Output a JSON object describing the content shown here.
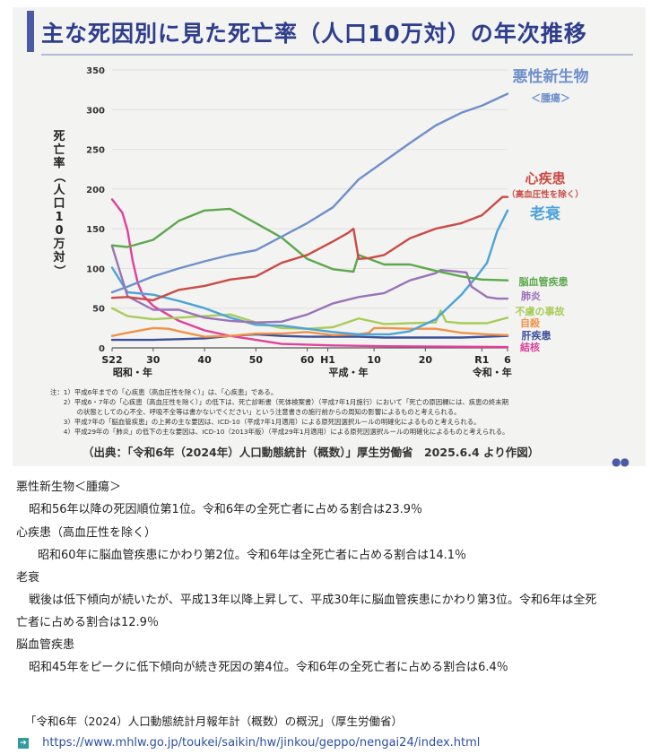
{
  "page": {
    "title": "主な死因別に見た死亡率（人口10万対）の年次推移",
    "notes": [
      "注：1）平成6年までの「心疾患（高血圧性を除く）」は、「心疾患」である。",
      "　　2）平成6・7年の「心疾患（高血圧性を除く）」の低下は、死亡診断書（死体検案書）（平成7年1月施行）において「死亡の原因欄には、疾患の終末期",
      "　　　　の状態としての心不全、呼吸不全等は書かないでください」という注意書きの施行前からの周知の影響によるものと考えられる。",
      "　　3）平成7年の「脳血管疾患」の上昇の主な要因は、ICD-10（平成7年1月適用）による原死因選択ルールの明確化によるものと考えられる。",
      "　　4）平成29年の「肺炎」の低下の主な要因は、ICD-10（2013年版）（平成29年1月適用）による原死因選択ルールの明確化によるものと考えられる。"
    ],
    "source": "（出典：「令和6年（2024年）人口動態統計（概数）」厚生労働省　2025.6.4 より作図）"
  },
  "colors": {
    "cancer": "#6f8fcb",
    "heart": "#c94c46",
    "senility": "#4da3d8",
    "cerebro": "#5da84e",
    "pneumonia": "#9a73b8",
    "accident": "#a8cc5a",
    "suicide": "#ef9348",
    "liver": "#3b4f9a",
    "tb": "#e1409b",
    "title": "#2e3e8c"
  },
  "chart_data": {
    "type": "line",
    "ylabel": "死亡率（人口10万対）",
    "ylim": [
      0,
      350
    ],
    "yticks": [
      0,
      50,
      100,
      150,
      200,
      250,
      300,
      350
    ],
    "xlim": [
      1947,
      2024
    ],
    "xticks": [
      {
        "year": 1947,
        "label": "S22"
      },
      {
        "year": 1955,
        "label": "30"
      },
      {
        "year": 1965,
        "label": "40"
      },
      {
        "year": 1975,
        "label": "50"
      },
      {
        "year": 1985,
        "label": "60"
      },
      {
        "year": 1989,
        "label": "H1"
      },
      {
        "year": 1998,
        "label": "10"
      },
      {
        "year": 2008,
        "label": "20"
      },
      {
        "year": 2019,
        "label": "R1"
      },
      {
        "year": 2024,
        "label": "6"
      }
    ],
    "era_labels": [
      {
        "year": 1951,
        "label": "昭和・年"
      },
      {
        "year": 1993,
        "label": "平成・年"
      },
      {
        "year": 2021,
        "label": "令和・年"
      }
    ],
    "series": [
      {
        "key": "cancer",
        "name": "悪性新生物",
        "sub": "＜腫瘍＞",
        "x": [
          1947,
          1950,
          1955,
          1960,
          1965,
          1970,
          1975,
          1980,
          1985,
          1990,
          1995,
          2000,
          2005,
          2010,
          2015,
          2019,
          2024
        ],
        "y": [
          70,
          77,
          90,
          100,
          109,
          117,
          123,
          140,
          157,
          177,
          212,
          235,
          258,
          280,
          296,
          305,
          320
        ]
      },
      {
        "key": "heart",
        "name": "心疾患",
        "sub": "（高血圧性を除く）",
        "x": [
          1947,
          1950,
          1955,
          1960,
          1965,
          1970,
          1975,
          1980,
          1985,
          1990,
          1993,
          1994,
          1995,
          1997,
          2000,
          2005,
          2010,
          2015,
          2019,
          2023,
          2024
        ],
        "y": [
          63,
          64,
          60,
          73,
          78,
          86,
          90,
          107,
          117,
          134,
          145,
          150,
          112,
          113,
          117,
          138,
          150,
          157,
          167,
          190,
          190
        ]
      },
      {
        "key": "senility",
        "name": "老衰",
        "x": [
          1947,
          1950,
          1955,
          1960,
          1965,
          1970,
          1975,
          1980,
          1985,
          1990,
          1995,
          2000,
          2001,
          2005,
          2010,
          2015,
          2018,
          2020,
          2022,
          2024
        ],
        "y": [
          101,
          70,
          67,
          59,
          50,
          38,
          29,
          28,
          24,
          20,
          17,
          17,
          17,
          21,
          36,
          67,
          90,
          107,
          147,
          173
        ]
      },
      {
        "key": "cerebro",
        "name": "脳血管疾患",
        "x": [
          1947,
          1950,
          1955,
          1960,
          1965,
          1970,
          1975,
          1980,
          1985,
          1990,
          1994,
          1995,
          2000,
          2005,
          2010,
          2015,
          2019,
          2024
        ],
        "y": [
          129,
          127,
          136,
          160,
          173,
          175,
          157,
          139,
          112,
          99,
          96,
          117,
          105,
          105,
          97,
          90,
          86,
          85
        ]
      },
      {
        "key": "pneumonia",
        "name": "肺炎",
        "x": [
          1947,
          1950,
          1955,
          1960,
          1965,
          1970,
          1975,
          1980,
          1985,
          1990,
          1995,
          2000,
          2005,
          2010,
          2011,
          2016,
          2017,
          2020,
          2022,
          2024
        ],
        "y": [
          128,
          65,
          48,
          48,
          38,
          34,
          32,
          33,
          42,
          56,
          64,
          69,
          85,
          94,
          98,
          95,
          77,
          64,
          62,
          62
        ]
      },
      {
        "key": "accident",
        "name": "不慮の事故",
        "x": [
          1947,
          1950,
          1955,
          1960,
          1965,
          1970,
          1975,
          1980,
          1985,
          1990,
          1995,
          2000,
          2005,
          2010,
          2011,
          2012,
          2015,
          2020,
          2024
        ],
        "y": [
          50,
          40,
          36,
          38,
          40,
          42,
          32,
          25,
          24,
          26,
          37,
          30,
          31,
          32,
          47,
          33,
          31,
          31,
          38
        ]
      },
      {
        "key": "suicide",
        "name": "自殺",
        "x": [
          1947,
          1950,
          1955,
          1958,
          1960,
          1965,
          1970,
          1975,
          1980,
          1985,
          1990,
          1995,
          1997,
          1998,
          2000,
          2005,
          2010,
          2015,
          2020,
          2024
        ],
        "y": [
          15,
          19,
          25,
          24,
          21,
          14,
          15,
          18,
          18,
          20,
          16,
          17,
          19,
          25,
          25,
          24,
          24,
          19,
          17,
          16
        ]
      },
      {
        "key": "liver",
        "name": "肝疾患",
        "x": [
          1947,
          1955,
          1960,
          1965,
          1970,
          1975,
          1980,
          1985,
          1990,
          1995,
          2000,
          2005,
          2010,
          2015,
          2020,
          2024
        ],
        "y": [
          10,
          10,
          11,
          12,
          15,
          17,
          15,
          14,
          14,
          14,
          13,
          13,
          13,
          13,
          14,
          15
        ]
      },
      {
        "key": "tb",
        "name": "結核",
        "x": [
          1947,
          1949,
          1950,
          1951,
          1952,
          1953,
          1955,
          1957,
          1960,
          1965,
          1970,
          1975,
          1980,
          1990,
          2000,
          2024
        ],
        "y": [
          187,
          170,
          148,
          110,
          82,
          66,
          53,
          45,
          34,
          22,
          15,
          10,
          5,
          3,
          2,
          1
        ]
      }
    ]
  },
  "descriptions": [
    {
      "heading": "悪性新生物＜腫瘍＞",
      "lines": [
        "昭和56年以降の死因順位第1位。令和6年の全死亡者に占める割合は23.9％"
      ]
    },
    {
      "heading": "心疾患（高血圧性を除く）",
      "lines": [
        "昭和60年に脳血管疾患にかわり第2位。令和6年は全死亡者に占める割合は14.1％"
      ]
    },
    {
      "heading": "老衰",
      "lines": [
        "戦後は低下傾向が続いたが、平成13年以降上昇して、平成30年に脳血管疾患にかわり第3位。令和6年は全死",
        "亡者に占める割合は12.9％"
      ]
    },
    {
      "heading": "脳血管疾患",
      "lines": [
        "昭和45年をピークに低下傾向が続き死因の第4位。令和6年の全死亡者に占める割合は6.4％"
      ]
    }
  ],
  "reference": {
    "title": "「令和6年（2024）人口動態統計月報年計（概数）の概況」（厚生労働省）",
    "url": "https://www.mhlw.go.jp/toukei/saikin/hw/jinkou/geppo/nengai24/index.html"
  }
}
